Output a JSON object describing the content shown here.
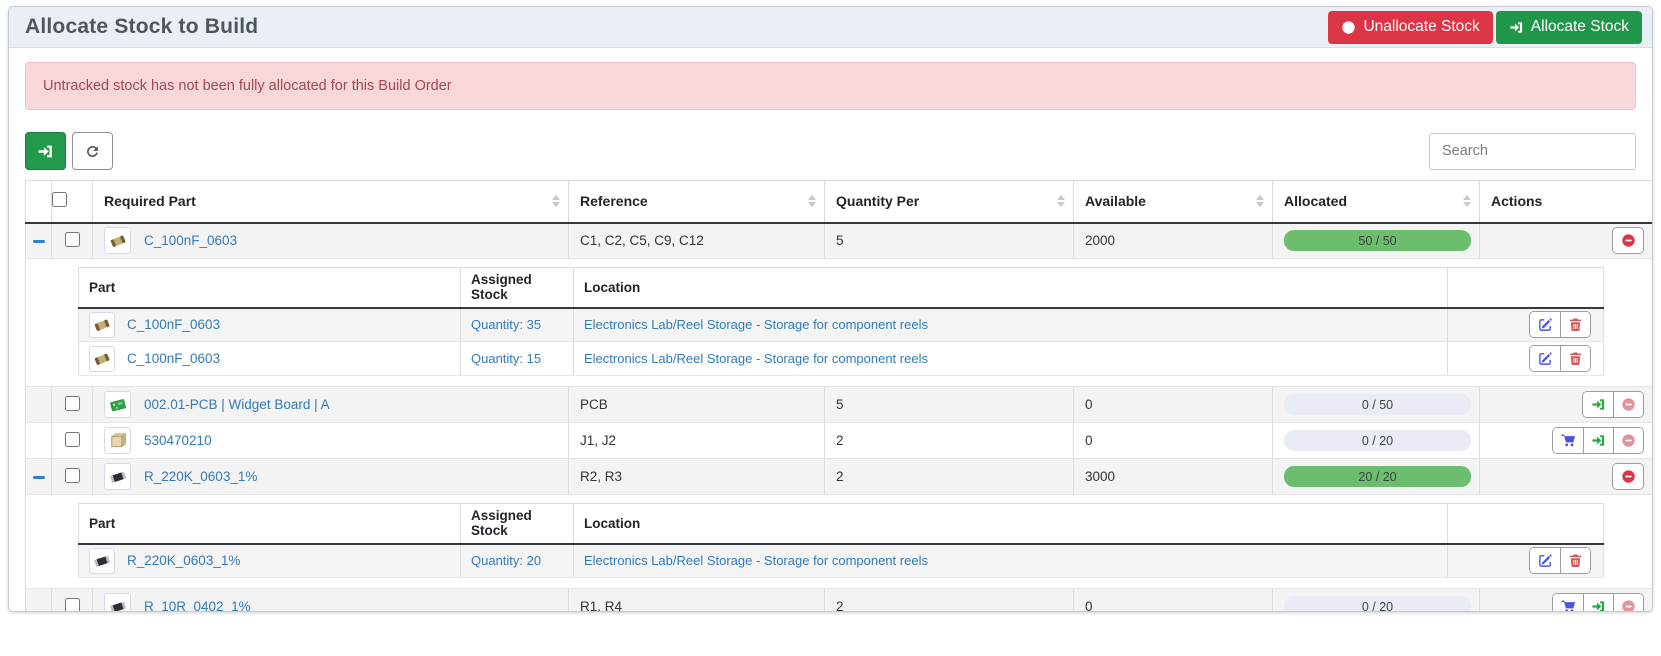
{
  "page": {
    "title": "Allocate Stock to Build"
  },
  "header": {
    "unallocate_button": "Unallocate Stock",
    "allocate_button": "Allocate Stock"
  },
  "alert": {
    "message": "Untracked stock has not been fully allocated for this Build Order"
  },
  "toolbar": {
    "search_placeholder": "Search"
  },
  "icons": {
    "unallocate": "minus-circle-icon",
    "allocate": "sign-in-icon",
    "refresh": "refresh-icon",
    "edit": "edit-icon",
    "delete": "trash-icon",
    "order": "cart-icon",
    "collapse": "collapse-minus-icon",
    "sort": "sort-caret-icon"
  },
  "colors": {
    "danger": "#dc3545",
    "success": "#1f9649",
    "link": "#337ab7",
    "progress_full": "#6cbd6d",
    "progress_empty": "#eaecf5",
    "alert_bg": "#f8d7da",
    "heading_bg": "#e9eff5"
  },
  "table": {
    "headers": {
      "required_part": "Required Part",
      "reference": "Reference",
      "quantity_per": "Quantity Per",
      "available": "Available",
      "allocated": "Allocated",
      "actions": "Actions"
    },
    "rows": [
      {
        "part": "C_100nF_0603",
        "reference": "C1, C2, C5, C9, C12",
        "quantity_per": "5",
        "available": "2000",
        "allocated": {
          "label": "50 / 50",
          "percent": 100
        }
      },
      {
        "part": "002.01-PCB | Widget Board | A",
        "reference": "PCB",
        "quantity_per": "5",
        "available": "0",
        "allocated": {
          "label": "0 / 50",
          "percent": 0
        }
      },
      {
        "part": "530470210",
        "reference": "J1, J2",
        "quantity_per": "2",
        "available": "0",
        "allocated": {
          "label": "0 / 20",
          "percent": 0
        }
      },
      {
        "part": "R_220K_0603_1%",
        "reference": "R2, R3",
        "quantity_per": "2",
        "available": "3000",
        "allocated": {
          "label": "20 / 20",
          "percent": 100
        }
      },
      {
        "part": "R_10R_0402_1%",
        "reference": "R1, R4",
        "quantity_per": "2",
        "available": "0",
        "allocated": {
          "label": "0 / 20",
          "percent": 0
        }
      }
    ],
    "subtable": {
      "headers": {
        "part": "Part",
        "assigned": "Assigned Stock",
        "location": "Location"
      },
      "groups": [
        {
          "parent": "C_100nF_0603",
          "rows": [
            {
              "part": "C_100nF_0603",
              "assigned": "Quantity: 35",
              "location": "Electronics Lab/Reel Storage - Storage for component reels"
            },
            {
              "part": "C_100nF_0603",
              "assigned": "Quantity: 15",
              "location": "Electronics Lab/Reel Storage - Storage for component reels"
            }
          ]
        },
        {
          "parent": "R_220K_0603_1%",
          "rows": [
            {
              "part": "R_220K_0603_1%",
              "assigned": "Quantity: 20",
              "location": "Electronics Lab/Reel Storage - Storage for component reels"
            }
          ]
        }
      ]
    }
  }
}
